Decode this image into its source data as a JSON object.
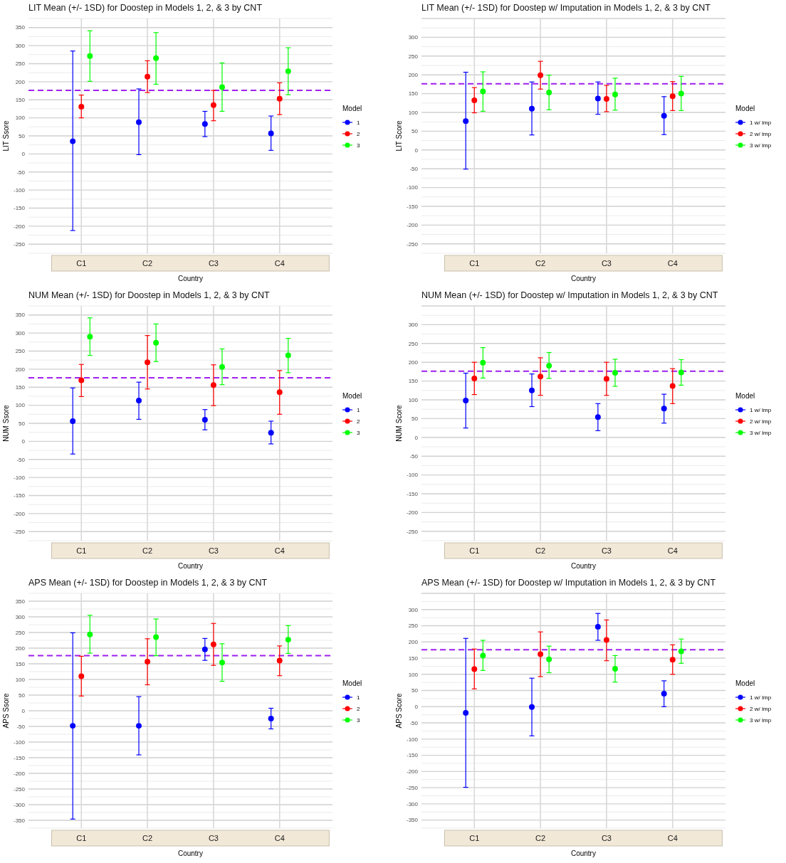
{
  "chart_data": [
    {
      "type": "scatter",
      "title": "LIT Mean (+/- 1SD) for Doostep in Models 1, 2, & 3 by CNT",
      "xlabel": "Country",
      "ylabel": "LIT Ssore",
      "legend_title": "Model",
      "categories": [
        "C1",
        "C2",
        "C3",
        "C4"
      ],
      "ylim": [
        -275,
        375
      ],
      "yticks": [
        -250,
        -200,
        -150,
        -100,
        -50,
        0,
        50,
        100,
        150,
        200,
        250,
        300,
        350
      ],
      "grid": true,
      "legend": "right",
      "marker": "circle",
      "ref_lines": [
        {
          "axis": "y",
          "value": 176,
          "color": "#a020f0",
          "line_style": "dashed"
        }
      ],
      "series": [
        {
          "name": "1",
          "color": "#0000ff",
          "values": [
            35,
            88,
            83,
            57
          ],
          "errors": [
            [
              -212,
              285
            ],
            [
              -2,
              180
            ],
            [
              48,
              118
            ],
            [
              10,
              105
            ]
          ]
        },
        {
          "name": "2",
          "color": "#ff0000",
          "values": [
            131,
            214,
            135,
            153
          ],
          "errors": [
            [
              100,
              163
            ],
            [
              170,
              258
            ],
            [
              92,
              176
            ],
            [
              109,
              197
            ]
          ]
        },
        {
          "name": "3",
          "color": "#00ff00",
          "values": [
            271,
            265,
            185,
            229
          ],
          "errors": [
            [
              201,
              341
            ],
            [
              193,
              336
            ],
            [
              118,
              252
            ],
            [
              164,
              294
            ]
          ]
        }
      ]
    },
    {
      "type": "scatter",
      "title": "LIT Mean (+/- 1SD) for Doostep w/ Imputation in Models 1, 2, & 3 by CNT",
      "xlabel": "Country",
      "ylabel": "LIT Score",
      "legend_title": "Model",
      "categories": [
        "C1",
        "C2",
        "C3",
        "C4"
      ],
      "ylim": [
        -275,
        350
      ],
      "yticks": [
        -250,
        -200,
        -150,
        -100,
        -50,
        0,
        50,
        100,
        150,
        200,
        250,
        300
      ],
      "grid": true,
      "legend": "right",
      "marker": "circle",
      "ref_lines": [
        {
          "axis": "y",
          "value": 176,
          "color": "#a020f0",
          "line_style": "dashed"
        }
      ],
      "series": [
        {
          "name": "1 w/ Imp",
          "color": "#0000ff",
          "values": [
            77,
            110,
            137,
            91
          ],
          "errors": [
            [
              -51,
              207
            ],
            [
              40,
              181
            ],
            [
              95,
              181
            ],
            [
              41,
              142
            ]
          ]
        },
        {
          "name": "2 w/ Imp",
          "color": "#ff0000",
          "values": [
            132,
            199,
            136,
            143
          ],
          "errors": [
            [
              99,
              166
            ],
            [
              162,
              236
            ],
            [
              102,
              172
            ],
            [
              105,
              182
            ]
          ]
        },
        {
          "name": "3 w/ Imp",
          "color": "#00ff00",
          "values": [
            156,
            153,
            148,
            150
          ],
          "errors": [
            [
              103,
              208
            ],
            [
              107,
              199
            ],
            [
              106,
              191
            ],
            [
              105,
              196
            ]
          ]
        }
      ]
    },
    {
      "type": "scatter",
      "title": "NUM Mean (+/- 1SD) for Doostep in Models 1, 2, & 3 by CNT",
      "xlabel": "Country",
      "ylabel": "NUM Ssore",
      "legend_title": "Model",
      "categories": [
        "C1",
        "C2",
        "C3",
        "C4"
      ],
      "ylim": [
        -275,
        375
      ],
      "yticks": [
        -250,
        -200,
        -150,
        -100,
        -50,
        0,
        50,
        100,
        150,
        200,
        250,
        300,
        350
      ],
      "grid": true,
      "legend": "right",
      "marker": "circle",
      "ref_lines": [
        {
          "axis": "y",
          "value": 176,
          "color": "#a020f0",
          "line_style": "dashed"
        }
      ],
      "series": [
        {
          "name": "1",
          "color": "#0000ff",
          "values": [
            56,
            113,
            60,
            24
          ],
          "errors": [
            [
              -35,
              148
            ],
            [
              61,
              164
            ],
            [
              32,
              88
            ],
            [
              -7,
              56
            ]
          ]
        },
        {
          "name": "2",
          "color": "#ff0000",
          "values": [
            169,
            219,
            156,
            136
          ],
          "errors": [
            [
              124,
              213
            ],
            [
              145,
              293
            ],
            [
              99,
              212
            ],
            [
              75,
              196
            ]
          ]
        },
        {
          "name": "3",
          "color": "#00ff00",
          "values": [
            290,
            273,
            206,
            238
          ],
          "errors": [
            [
              238,
              342
            ],
            [
              221,
              325
            ],
            [
              157,
              256
            ],
            [
              190,
              285
            ]
          ]
        }
      ]
    },
    {
      "type": "scatter",
      "title": "NUM Mean (+/- 1SD) for Doostep w/ Imputation in Models 1, 2, & 3 by CNT",
      "xlabel": "Country",
      "ylabel": "NUM Score",
      "legend_title": "Model",
      "categories": [
        "C1",
        "C2",
        "C3",
        "C4"
      ],
      "ylim": [
        -275,
        350
      ],
      "yticks": [
        -250,
        -200,
        -150,
        -100,
        -50,
        0,
        50,
        100,
        150,
        200,
        250,
        300
      ],
      "grid": true,
      "legend": "right",
      "marker": "circle",
      "ref_lines": [
        {
          "axis": "y",
          "value": 176,
          "color": "#a020f0",
          "line_style": "dashed"
        }
      ],
      "series": [
        {
          "name": "1 w/ Imp",
          "color": "#0000ff",
          "values": [
            98,
            125,
            54,
            77
          ],
          "errors": [
            [
              25,
              171
            ],
            [
              82,
              169
            ],
            [
              18,
              90
            ],
            [
              38,
              115
            ]
          ]
        },
        {
          "name": "2 w/ Imp",
          "color": "#ff0000",
          "values": [
            157,
            162,
            156,
            137
          ],
          "errors": [
            [
              114,
              200
            ],
            [
              112,
              212
            ],
            [
              112,
              200
            ],
            [
              90,
              183
            ]
          ]
        },
        {
          "name": "3 w/ Imp",
          "color": "#00ff00",
          "values": [
            199,
            191,
            172,
            173
          ],
          "errors": [
            [
              158,
              239
            ],
            [
              157,
              226
            ],
            [
              136,
              208
            ],
            [
              139,
              207
            ]
          ]
        }
      ]
    },
    {
      "type": "scatter",
      "title": "APS Mean (+/- 1SD) for Doostep in Models 1, 2, & 3 by CNT",
      "xlabel": "Country",
      "ylabel": "APS Ssore",
      "legend_title": "Model",
      "categories": [
        "C1",
        "C2",
        "C3",
        "C4"
      ],
      "ylim": [
        -375,
        375
      ],
      "yticks": [
        -350,
        -300,
        -250,
        -200,
        -150,
        -100,
        -50,
        0,
        50,
        100,
        150,
        200,
        250,
        300,
        350
      ],
      "grid": true,
      "legend": "right",
      "marker": "circle",
      "ref_lines": [
        {
          "axis": "y",
          "value": 176,
          "color": "#a020f0",
          "line_style": "dashed"
        }
      ],
      "series": [
        {
          "name": "1",
          "color": "#0000ff",
          "values": [
            -48,
            -48,
            196,
            -25
          ],
          "errors": [
            [
              -346,
              249
            ],
            [
              -141,
              45
            ],
            [
              161,
              231
            ],
            [
              -58,
              8
            ]
          ]
        },
        {
          "name": "2",
          "color": "#ff0000",
          "values": [
            110,
            157,
            212,
            160
          ],
          "errors": [
            [
              47,
              174
            ],
            [
              83,
              230
            ],
            [
              145,
              279
            ],
            [
              112,
              207
            ]
          ]
        },
        {
          "name": "3",
          "color": "#00ff00",
          "values": [
            244,
            235,
            154,
            227
          ],
          "errors": [
            [
              184,
              305
            ],
            [
              176,
              293
            ],
            [
              94,
              214
            ],
            [
              183,
              272
            ]
          ]
        }
      ]
    },
    {
      "type": "scatter",
      "title": "APS Mean (+/- 1SD) for Doostep w/ Imputation in Models 1, 2, & 3 by CNT",
      "xlabel": "Country",
      "ylabel": "APS Score",
      "legend_title": "Model",
      "categories": [
        "C1",
        "C2",
        "C3",
        "C4"
      ],
      "ylim": [
        -375,
        350
      ],
      "yticks": [
        -350,
        -300,
        -250,
        -200,
        -150,
        -100,
        -50,
        0,
        50,
        100,
        150,
        200,
        250,
        300
      ],
      "grid": true,
      "legend": "right",
      "marker": "circle",
      "ref_lines": [
        {
          "axis": "y",
          "value": 176,
          "color": "#a020f0",
          "line_style": "dashed"
        }
      ],
      "series": [
        {
          "name": "1 w/ Imp",
          "color": "#0000ff",
          "values": [
            -19,
            -1,
            247,
            40
          ],
          "errors": [
            [
              -249,
              211
            ],
            [
              -90,
              88
            ],
            [
              205,
              288
            ],
            [
              0,
              80
            ]
          ]
        },
        {
          "name": "2 w/ Imp",
          "color": "#ff0000",
          "values": [
            116,
            162,
            206,
            145
          ],
          "errors": [
            [
              55,
              178
            ],
            [
              93,
              231
            ],
            [
              142,
              268
            ],
            [
              100,
              191
            ]
          ]
        },
        {
          "name": "3 w/ Imp",
          "color": "#00ff00",
          "values": [
            158,
            146,
            117,
            171
          ],
          "errors": [
            [
              112,
              205
            ],
            [
              105,
              187
            ],
            [
              76,
              158
            ],
            [
              134,
              209
            ]
          ]
        }
      ]
    }
  ]
}
